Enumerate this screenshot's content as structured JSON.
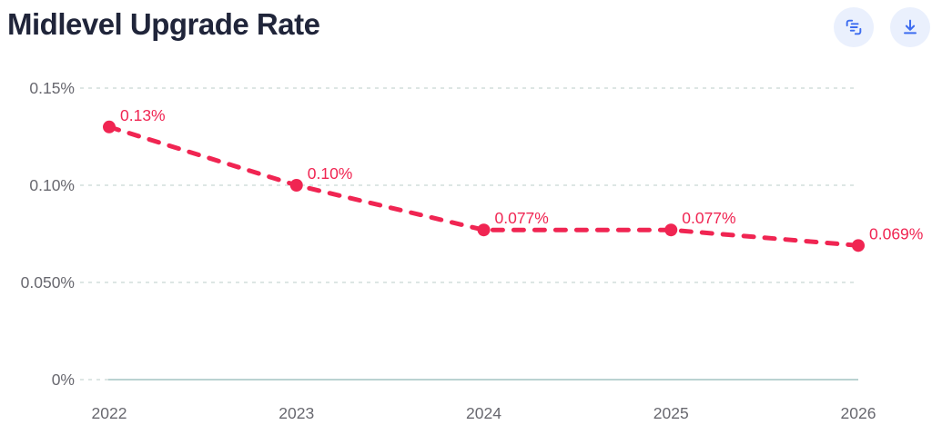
{
  "page": {
    "title": "Midlevel Upgrade Rate"
  },
  "toolbar": {
    "buttons": [
      {
        "name": "view-data",
        "icon": "data-list-icon"
      },
      {
        "name": "download",
        "icon": "download-icon"
      }
    ],
    "button_bg": "#EAF0FD",
    "icon_color": "#3D6CF0"
  },
  "chart_data": {
    "type": "line",
    "title": "Midlevel Upgrade Rate",
    "categories": [
      "2022",
      "2023",
      "2024",
      "2025",
      "2026"
    ],
    "series": [
      {
        "name": "Midlevel Upgrade Rate",
        "values": [
          0.13,
          0.1,
          0.077,
          0.077,
          0.069
        ]
      }
    ],
    "point_labels": [
      "0.13%",
      "0.10%",
      "0.077%",
      "0.077%",
      "0.069%"
    ],
    "y_ticks": [
      {
        "value": 0,
        "label": "0%"
      },
      {
        "value": 0.05,
        "label": "0.050%"
      },
      {
        "value": 0.1,
        "label": "0.10%"
      },
      {
        "value": 0.15,
        "label": "0.15%"
      }
    ],
    "ylim": [
      0,
      0.15
    ],
    "line_color": "#F02552",
    "line_style": "dashed",
    "marker": "circle",
    "grid": true,
    "grid_color": "#D2DEDC",
    "axis_line_color": "#BAD2D1",
    "axis_text_color": "#68686F",
    "legend": "none",
    "xlabel": "",
    "ylabel": ""
  }
}
